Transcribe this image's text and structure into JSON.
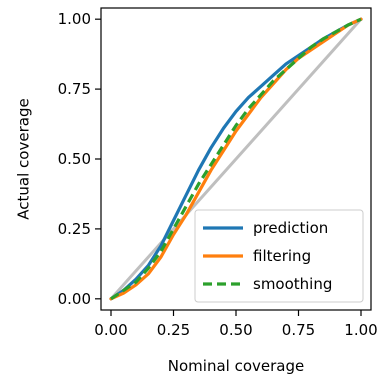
{
  "chart_data": {
    "type": "line",
    "title": "",
    "xlabel": "Nominal coverage",
    "ylabel": "Actual coverage",
    "xlim": [
      -0.04,
      1.04
    ],
    "ylim": [
      -0.04,
      1.04
    ],
    "xticks": [
      0.0,
      0.25,
      0.5,
      0.75,
      1.0
    ],
    "yticks": [
      0.0,
      0.25,
      0.5,
      0.75,
      1.0
    ],
    "xtick_labels": [
      "0.00",
      "0.25",
      "0.50",
      "0.75",
      "1.00"
    ],
    "ytick_labels": [
      "0.00",
      "0.25",
      "0.50",
      "0.75",
      "1.00"
    ],
    "grid": false,
    "legend_position": "lower-right",
    "reference_line": {
      "x": [
        0,
        1
      ],
      "y": [
        0,
        1
      ],
      "color": "#bfbfbf"
    },
    "series": [
      {
        "name": "prediction",
        "color": "#1f77b4",
        "style": "solid",
        "x": [
          0.0,
          0.05,
          0.1,
          0.15,
          0.2,
          0.25,
          0.3,
          0.35,
          0.4,
          0.45,
          0.5,
          0.55,
          0.6,
          0.65,
          0.7,
          0.75,
          0.8,
          0.85,
          0.9,
          0.95,
          1.0
        ],
        "y": [
          0.0,
          0.03,
          0.07,
          0.12,
          0.19,
          0.28,
          0.37,
          0.46,
          0.54,
          0.61,
          0.67,
          0.72,
          0.76,
          0.8,
          0.84,
          0.87,
          0.9,
          0.93,
          0.955,
          0.98,
          1.0
        ]
      },
      {
        "name": "filtering",
        "color": "#ff7f0e",
        "style": "solid",
        "x": [
          0.0,
          0.05,
          0.1,
          0.15,
          0.2,
          0.25,
          0.3,
          0.35,
          0.4,
          0.45,
          0.5,
          0.55,
          0.6,
          0.65,
          0.7,
          0.75,
          0.8,
          0.85,
          0.9,
          0.95,
          1.0
        ],
        "y": [
          0.0,
          0.02,
          0.05,
          0.09,
          0.15,
          0.23,
          0.3,
          0.38,
          0.46,
          0.53,
          0.6,
          0.66,
          0.72,
          0.77,
          0.82,
          0.86,
          0.89,
          0.92,
          0.95,
          0.98,
          1.0
        ]
      },
      {
        "name": "smoothing",
        "color": "#2ca02c",
        "style": "dashed",
        "x": [
          0.0,
          0.05,
          0.1,
          0.15,
          0.2,
          0.25,
          0.3,
          0.35,
          0.4,
          0.45,
          0.5,
          0.55,
          0.6,
          0.65,
          0.7,
          0.75,
          0.8,
          0.85,
          0.9,
          0.95,
          1.0
        ],
        "y": [
          0.0,
          0.03,
          0.06,
          0.11,
          0.17,
          0.25,
          0.33,
          0.41,
          0.48,
          0.55,
          0.62,
          0.68,
          0.73,
          0.78,
          0.82,
          0.86,
          0.9,
          0.93,
          0.955,
          0.98,
          1.0
        ]
      }
    ]
  }
}
